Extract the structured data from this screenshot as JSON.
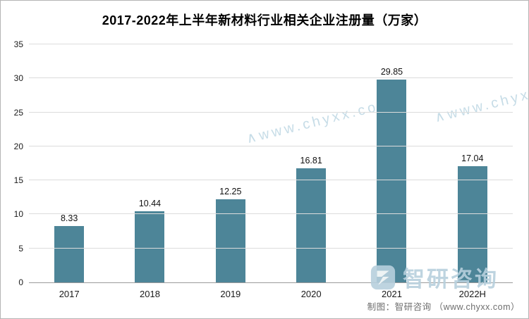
{
  "title": "2017-2022年上半年新材料行业相关企业注册量（万家）",
  "chart_data": {
    "type": "bar",
    "title": "2017-2022年上半年新材料行业相关企业注册量（万家）",
    "categories": [
      "2017",
      "2018",
      "2019",
      "2020",
      "2021",
      "2022H"
    ],
    "values": [
      8.33,
      10.44,
      12.25,
      16.81,
      29.85,
      17.04
    ],
    "xlabel": "",
    "ylabel": "",
    "ylim": [
      0,
      35
    ],
    "yticks": [
      0,
      5,
      10,
      15,
      20,
      25,
      30,
      35
    ],
    "grid": true,
    "legend": "none",
    "bar_color": "#4d8598"
  },
  "watermarks": {
    "diagonal_text": "∧www.chyxx.com",
    "logo_text": "智研咨询",
    "credit": "制图：智研咨询 （www.chyxx.com）"
  }
}
